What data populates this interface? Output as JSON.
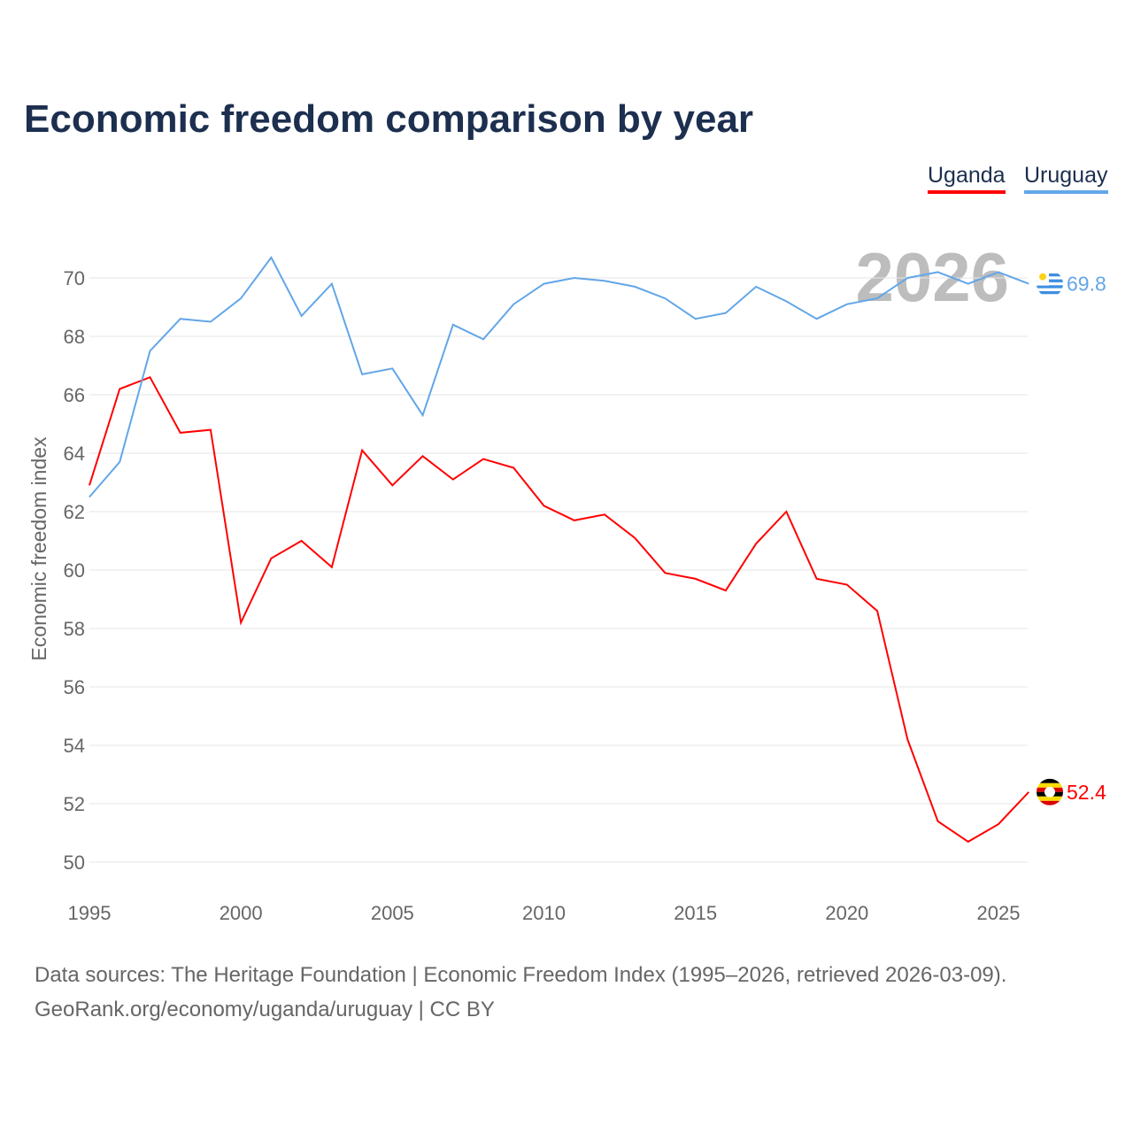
{
  "chart_data": {
    "type": "line",
    "title": "Economic freedom comparison by year",
    "ylabel": "Economic freedom index",
    "xlabel": "",
    "ylim": [
      50,
      70
    ],
    "xlim": [
      1995,
      2026
    ],
    "yticks": [
      "50",
      "52",
      "54",
      "56",
      "58",
      "60",
      "62",
      "64",
      "66",
      "68",
      "70"
    ],
    "xticks": [
      "1995",
      "2000",
      "2005",
      "2010",
      "2015",
      "2020",
      "2025"
    ],
    "watermark_year": "2026",
    "legend_placement": "top-right",
    "x": [
      1995,
      1996,
      1997,
      1998,
      1999,
      2000,
      2001,
      2002,
      2003,
      2004,
      2005,
      2006,
      2007,
      2008,
      2009,
      2010,
      2011,
      2012,
      2013,
      2014,
      2015,
      2016,
      2017,
      2018,
      2019,
      2020,
      2021,
      2022,
      2023,
      2024,
      2025,
      2026
    ],
    "series": [
      {
        "name": "Uganda",
        "color": "#ff0000",
        "end_label": "52.4",
        "flag": "uganda-flag",
        "values": [
          62.9,
          66.2,
          66.6,
          64.7,
          64.8,
          58.2,
          60.4,
          61.0,
          60.1,
          64.1,
          62.9,
          63.9,
          63.1,
          63.8,
          63.5,
          62.2,
          61.7,
          61.9,
          61.1,
          59.9,
          59.7,
          59.3,
          60.9,
          62.0,
          59.7,
          59.5,
          58.6,
          54.2,
          51.4,
          50.7,
          51.3,
          52.4
        ]
      },
      {
        "name": "Uruguay",
        "color": "#62a6e8",
        "end_label": "69.8",
        "flag": "uruguay-flag",
        "values": [
          62.5,
          63.7,
          67.5,
          68.6,
          68.5,
          69.3,
          70.7,
          68.7,
          69.8,
          66.7,
          66.9,
          65.3,
          68.4,
          67.9,
          69.1,
          69.8,
          70.0,
          69.9,
          69.7,
          69.3,
          68.6,
          68.8,
          69.7,
          69.2,
          68.6,
          69.1,
          69.3,
          70.0,
          70.2,
          69.8,
          70.2,
          69.8
        ]
      }
    ]
  },
  "footer": {
    "source": "Data sources: The Heritage Foundation | Economic Freedom Index (1995–2026, retrieved 2026-03-09).",
    "credit": "GeoRank.org/economy/uganda/uruguay | CC BY"
  }
}
